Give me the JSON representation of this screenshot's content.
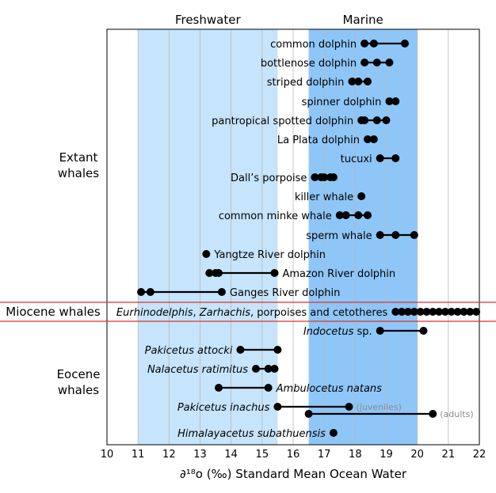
{
  "chart_data": {
    "type": "scatter",
    "title": "",
    "xlabel": "∂¹⁸o (‰) Standard Mean Ocean Water",
    "ylabel": "",
    "xlim": [
      10,
      22
    ],
    "x_ticks": [
      "10",
      "11",
      "12",
      "13",
      "14",
      "15",
      "16",
      "17",
      "18",
      "19",
      "20",
      "21",
      "22"
    ],
    "grid": "vertical lines at each integer",
    "regions": [
      {
        "label": "Freshwater",
        "x_range": [
          11,
          15.5
        ],
        "color": "#c6e4fb"
      },
      {
        "label": "Marine",
        "x_range": [
          16.5,
          20
        ],
        "color": "#8ec6f8"
      }
    ],
    "groups": [
      {
        "label": "Extant\nwhales"
      },
      {
        "label": "Miocene whales"
      },
      {
        "label": "Eocene\nwhales"
      }
    ],
    "series": [
      {
        "name": "common dolphin",
        "group": "Extant",
        "italic": false,
        "label_side": "left",
        "points": [
          18.3,
          18.6,
          19.6
        ],
        "range": [
          18.3,
          19.6
        ]
      },
      {
        "name": "bottlenose dolphin",
        "group": "Extant",
        "italic": false,
        "label_side": "left",
        "points": [
          18.3,
          18.7,
          19.1
        ],
        "range": [
          18.3,
          19.1
        ]
      },
      {
        "name": "striped dolphin",
        "group": "Extant",
        "italic": false,
        "label_side": "left",
        "points": [
          17.9,
          18.1,
          18.4
        ],
        "range": [
          17.9,
          18.4
        ]
      },
      {
        "name": "spinner dolphin",
        "group": "Extant",
        "italic": false,
        "label_side": "left",
        "points": [
          19.1,
          19.3
        ],
        "range": [
          19.1,
          19.3
        ]
      },
      {
        "name": "pantropical spotted dolphin",
        "group": "Extant",
        "italic": false,
        "label_side": "left",
        "points": [
          18.2,
          18.3,
          18.7,
          19.0
        ],
        "range": [
          18.2,
          19.0
        ]
      },
      {
        "name": "La Plata dolphin",
        "group": "Extant",
        "italic": false,
        "label_side": "left",
        "points": [
          18.4,
          18.6
        ],
        "range": [
          18.4,
          18.6
        ]
      },
      {
        "name": "tucuxi",
        "group": "Extant",
        "italic": false,
        "label_side": "left",
        "points": [
          18.8,
          19.3
        ],
        "range": [
          18.8,
          19.3
        ]
      },
      {
        "name": "Dall’s porpoise",
        "group": "Extant",
        "italic": false,
        "label_side": "left",
        "points": [
          16.7,
          16.9,
          17.0,
          17.2,
          17.3
        ],
        "range": [
          16.7,
          17.3
        ]
      },
      {
        "name": "killer whale",
        "group": "Extant",
        "italic": false,
        "label_side": "left",
        "points": [
          18.2
        ],
        "range": null
      },
      {
        "name": "common minke whale",
        "group": "Extant",
        "italic": false,
        "label_side": "left",
        "points": [
          17.5,
          17.7,
          18.1,
          18.4
        ],
        "range": [
          17.5,
          18.4
        ]
      },
      {
        "name": "sperm whale",
        "group": "Extant",
        "italic": false,
        "label_side": "left",
        "points": [
          18.8,
          19.3,
          19.9
        ],
        "range": [
          18.8,
          19.9
        ]
      },
      {
        "name": "Yangtze River dolphin",
        "group": "Extant",
        "italic": false,
        "label_side": "right",
        "points": [
          13.2
        ],
        "range": null
      },
      {
        "name": "Amazon River dolphin",
        "group": "Extant",
        "italic": false,
        "label_side": "right",
        "points": [
          13.3,
          13.5,
          13.6,
          15.4
        ],
        "range": [
          13.3,
          15.4
        ]
      },
      {
        "name": "Ganges River dolphin",
        "group": "Extant",
        "italic": false,
        "label_side": "right",
        "points": [
          11.1,
          11.4,
          13.7
        ],
        "range": [
          11.1,
          13.7
        ]
      },
      {
        "name": "Eurhinodelphis, Zarhachis, porpoises and cetotheres",
        "group": "Miocene",
        "italic": false,
        "label_side": "left",
        "points": [
          19.3,
          19.5,
          19.7,
          19.9,
          20.1,
          20.3,
          20.5,
          20.7,
          20.9,
          21.1,
          21.3,
          21.5,
          21.7,
          21.9
        ],
        "range": [
          19.3,
          21.9
        ]
      },
      {
        "name": "Indocetus sp.",
        "group": "Eocene",
        "italic": false,
        "label_side": "left",
        "points": [
          18.8,
          20.2
        ],
        "range": [
          18.8,
          20.2
        ]
      },
      {
        "name": "Pakicetus attocki",
        "group": "Eocene",
        "italic": true,
        "label_side": "left",
        "points": [
          14.3,
          15.5
        ],
        "range": [
          14.3,
          15.5
        ]
      },
      {
        "name": "Nalacetus ratimitus",
        "group": "Eocene",
        "italic": true,
        "label_side": "left",
        "points": [
          14.8,
          15.2,
          15.4
        ],
        "range": [
          14.8,
          15.4
        ]
      },
      {
        "name": "Ambulocetus natans",
        "group": "Eocene",
        "italic": true,
        "label_side": "right",
        "points": [
          13.6,
          15.2
        ],
        "range": [
          13.6,
          15.2
        ]
      },
      {
        "name": "Pakicetus inachus",
        "group": "Eocene",
        "italic": true,
        "label_side": "left",
        "points": [
          15.5,
          17.8
        ],
        "range": [
          15.5,
          17.8
        ],
        "note": "(juveniles)",
        "points_2": [
          16.5,
          20.5
        ],
        "range_2": [
          16.5,
          20.5
        ],
        "note_2": "(adults)"
      },
      {
        "name": "Himalayacetus subathuensis",
        "group": "Eocene",
        "italic": true,
        "label_side": "left",
        "points": [
          17.3
        ],
        "range": null
      }
    ]
  },
  "miocene_label_parts": {
    "part1": "Eurhinodelphis",
    "sep1": ", ",
    "part2": "Zarhachis",
    "rest": ", porpoises and cetotheres"
  },
  "indocetus_parts": {
    "italic": "Indocetus",
    "plain": " sp."
  },
  "colors": {
    "freshwater": "#c6e4fb",
    "marine": "#8ec6f8",
    "grid": "#b9b9b9",
    "points": "#000000",
    "miocene_band": "#d9342b",
    "note_text": "#8c8c8c"
  }
}
